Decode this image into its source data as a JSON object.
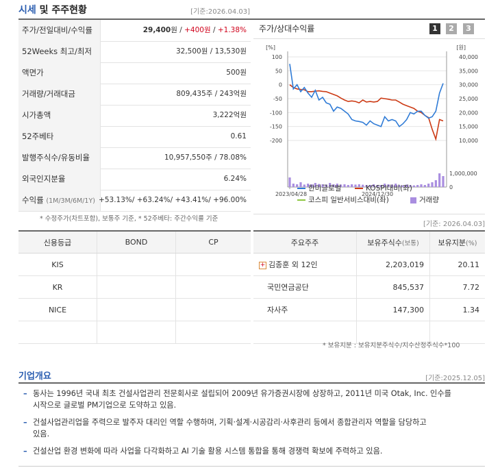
{
  "header": {
    "title_blue": "시세",
    "title_rest": " 및 주주현황",
    "basis": "[기준:2026.04.03]"
  },
  "quote": {
    "rows": [
      {
        "label": "주가/전일대비/수익률",
        "price": "29,400",
        "unit": "원",
        "sep1": " / ",
        "change": "+400원",
        "sep2": " / ",
        "pct": "+1.38%"
      },
      {
        "label": "52Weeks 최고/최저",
        "value": "32,500원 / 13,530원"
      },
      {
        "label": "액면가",
        "value": "500원"
      },
      {
        "label": "거래량/거래대금",
        "value": "809,435주 / 243억원"
      },
      {
        "label": "시가총액",
        "value": "3,222억원"
      },
      {
        "label": "52주베타",
        "value": "0.61"
      },
      {
        "label": "발행주식수/유동비율",
        "value": "10,957,550주 / 78.08%"
      },
      {
        "label": "외국인지분율",
        "value": "6.24%"
      },
      {
        "label": "수익률",
        "label_sub": "(1M/3M/6M/1Y)",
        "value": "+53.13%/ +63.24%/ +43.41%/ +96.00%"
      }
    ],
    "note": "* 수정주가(차트포함), 보통주 기준, * 52주베타: 주간수익률 기준"
  },
  "chart": {
    "title": "주가/상대수익률",
    "period_buttons": [
      "1",
      "2",
      "3"
    ],
    "active_period": "1",
    "left_unit": "[%]",
    "right_unit": "[원]",
    "left_ticks": [
      "100",
      "50",
      "0",
      "-50",
      "-100",
      "-150",
      "-200"
    ],
    "right_ticks": [
      "40,000",
      "35,000",
      "30,000",
      "25,000",
      "20,000",
      "15,000",
      "10,000"
    ],
    "vol_ticks": [
      "1,000,000",
      "0"
    ],
    "x_labels": [
      "2023/04/28",
      "2024/12/30"
    ],
    "legend": {
      "stock": "한미글로벌",
      "kospi": "KOSPI대비(좌)",
      "sector": "코스피 일반서비스대비(좌)",
      "volume": "거래량"
    },
    "colors": {
      "stock": "#2f7bd6",
      "kospi": "#cc3a14",
      "sector": "#8cc63f",
      "volume": "#a98ee0"
    }
  },
  "chart_data": {
    "type": "line",
    "series": [
      {
        "name": "한미글로벌",
        "axis": "right",
        "values": [
          37500,
          28500,
          30000,
          27500,
          29000,
          27000,
          25500,
          28000,
          24500,
          25500,
          23500,
          23000,
          20500,
          22000,
          21500,
          20500,
          19500,
          17500,
          17000,
          16800,
          16500,
          15500,
          17000,
          16000,
          15500,
          15000,
          18500,
          17000,
          17500,
          17000,
          15000,
          16000,
          17500,
          20000,
          19500,
          20500,
          20500,
          19000,
          18000,
          18500,
          20500,
          27000,
          30500
        ]
      },
      {
        "name": "KOSPI대비(좌)",
        "axis": "left",
        "values": [
          0,
          -10,
          -15,
          -17,
          -18,
          -25,
          -25,
          -23,
          -22,
          -24,
          -25,
          -30,
          -35,
          -40,
          -48,
          -55,
          -60,
          -58,
          -60,
          -65,
          -55,
          -62,
          -60,
          -62,
          -60,
          -48,
          -50,
          -52,
          -55,
          -55,
          -62,
          -70,
          -75,
          -80,
          -85,
          -95,
          -100,
          -110,
          -118,
          -160,
          -195,
          -125,
          -130
        ]
      }
    ],
    "volume_max": 1000000,
    "volume": [
      0.7,
      0.25,
      0.2,
      0.35,
      0.18,
      0.25,
      0.2,
      0.3,
      0.22,
      0.2,
      0.18,
      0.3,
      0.2,
      0.25,
      0.18,
      0.2,
      0.15,
      0.2,
      0.18,
      0.2,
      0.17,
      0.15,
      0.15,
      0.2,
      0.15,
      0.15,
      0.25,
      0.2,
      0.18,
      0.25,
      0.15,
      0.12,
      0.18,
      0.15,
      0.12,
      0.15,
      0.2,
      0.15,
      0.25,
      0.35,
      0.5,
      1.0,
      0.8
    ],
    "y_left": [
      -200,
      100
    ],
    "y_right": [
      10000,
      40000
    ]
  },
  "credit": {
    "headers": [
      "신용등급",
      "BOND",
      "CP"
    ],
    "rows": [
      {
        "agency": "KIS",
        "bond": "",
        "cp": ""
      },
      {
        "agency": "KR",
        "bond": "",
        "cp": ""
      },
      {
        "agency": "NICE",
        "bond": "",
        "cp": ""
      }
    ]
  },
  "holders": {
    "basis": "[기준: 2026.04.03]",
    "headers": [
      "주요주주",
      "보유주식수",
      "(보통)",
      "보유지분",
      "(%)"
    ],
    "rows": [
      {
        "name": "김종훈 외 12인",
        "expand": "+",
        "shares": "2,203,019",
        "pct": "20.11"
      },
      {
        "name": "국민연금공단",
        "shares": "845,537",
        "pct": "7.72"
      },
      {
        "name": "자사주",
        "shares": "147,300",
        "pct": "1.34"
      }
    ],
    "note": "* 보유지분 : 보유지분주식수/지수산정주식수*100"
  },
  "overview": {
    "title": "기업개요",
    "basis": "[기준:2025.12.05]",
    "bullets": [
      {
        "line1": "동사는 1996년 국내 최초 건설사업관리 전문회사로 설립되어 2009년 유가증권시장에 상장하고, 2011년 미국 Otak, Inc. 인수를",
        "line2": "시작으로 글로벌 PM기업으로 도약하고 있음."
      },
      {
        "line1": "건설사업관리업을 주력으로 발주자 대리인 역할 수행하며, 기획·설계·시공감리·사후관리 등에서 종합관리자 역할을 담당하고",
        "line2": "있음."
      },
      {
        "line1": "건설산업 환경 변화에 따라 사업을 다각화하고 AI 기술 활용 시스템 통합을 통해 경쟁력 확보에 주력하고 있음.",
        "line2": ""
      }
    ]
  }
}
